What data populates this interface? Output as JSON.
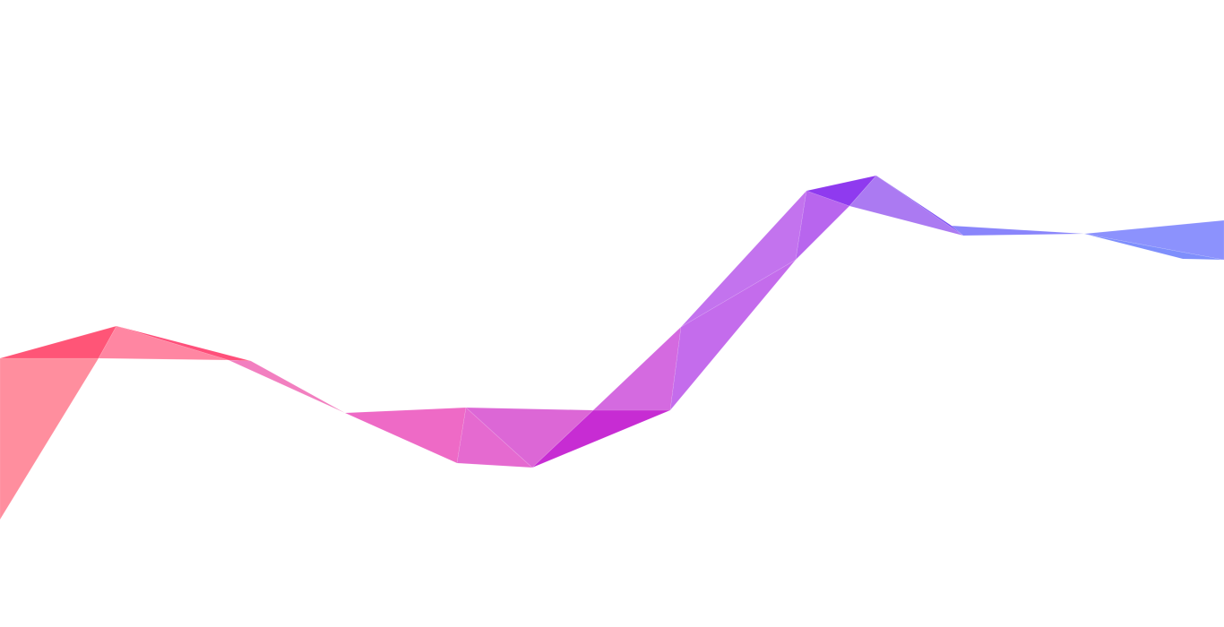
{
  "background_color": "#ffffff",
  "ribbon": {
    "gradient_start_color": "#ff6b85",
    "gradient_mid_color": "#c43bd6",
    "gradient_end_color": "#7a8cff",
    "facet_colors": [
      "#ff8e9e",
      "#ff5577",
      "#ff86a2",
      "#ff4f7a",
      "#f27fc0",
      "#ee6ac6",
      "#e56ad0",
      "#dc67d6",
      "#c72cd3",
      "#d46ae0",
      "#c46cec",
      "#c373ee",
      "#b865ee",
      "#8f3aef",
      "#ab7af2",
      "#7d4ff5",
      "#8a85fb",
      "#7f8ffc",
      "#8c92fd"
    ]
  }
}
